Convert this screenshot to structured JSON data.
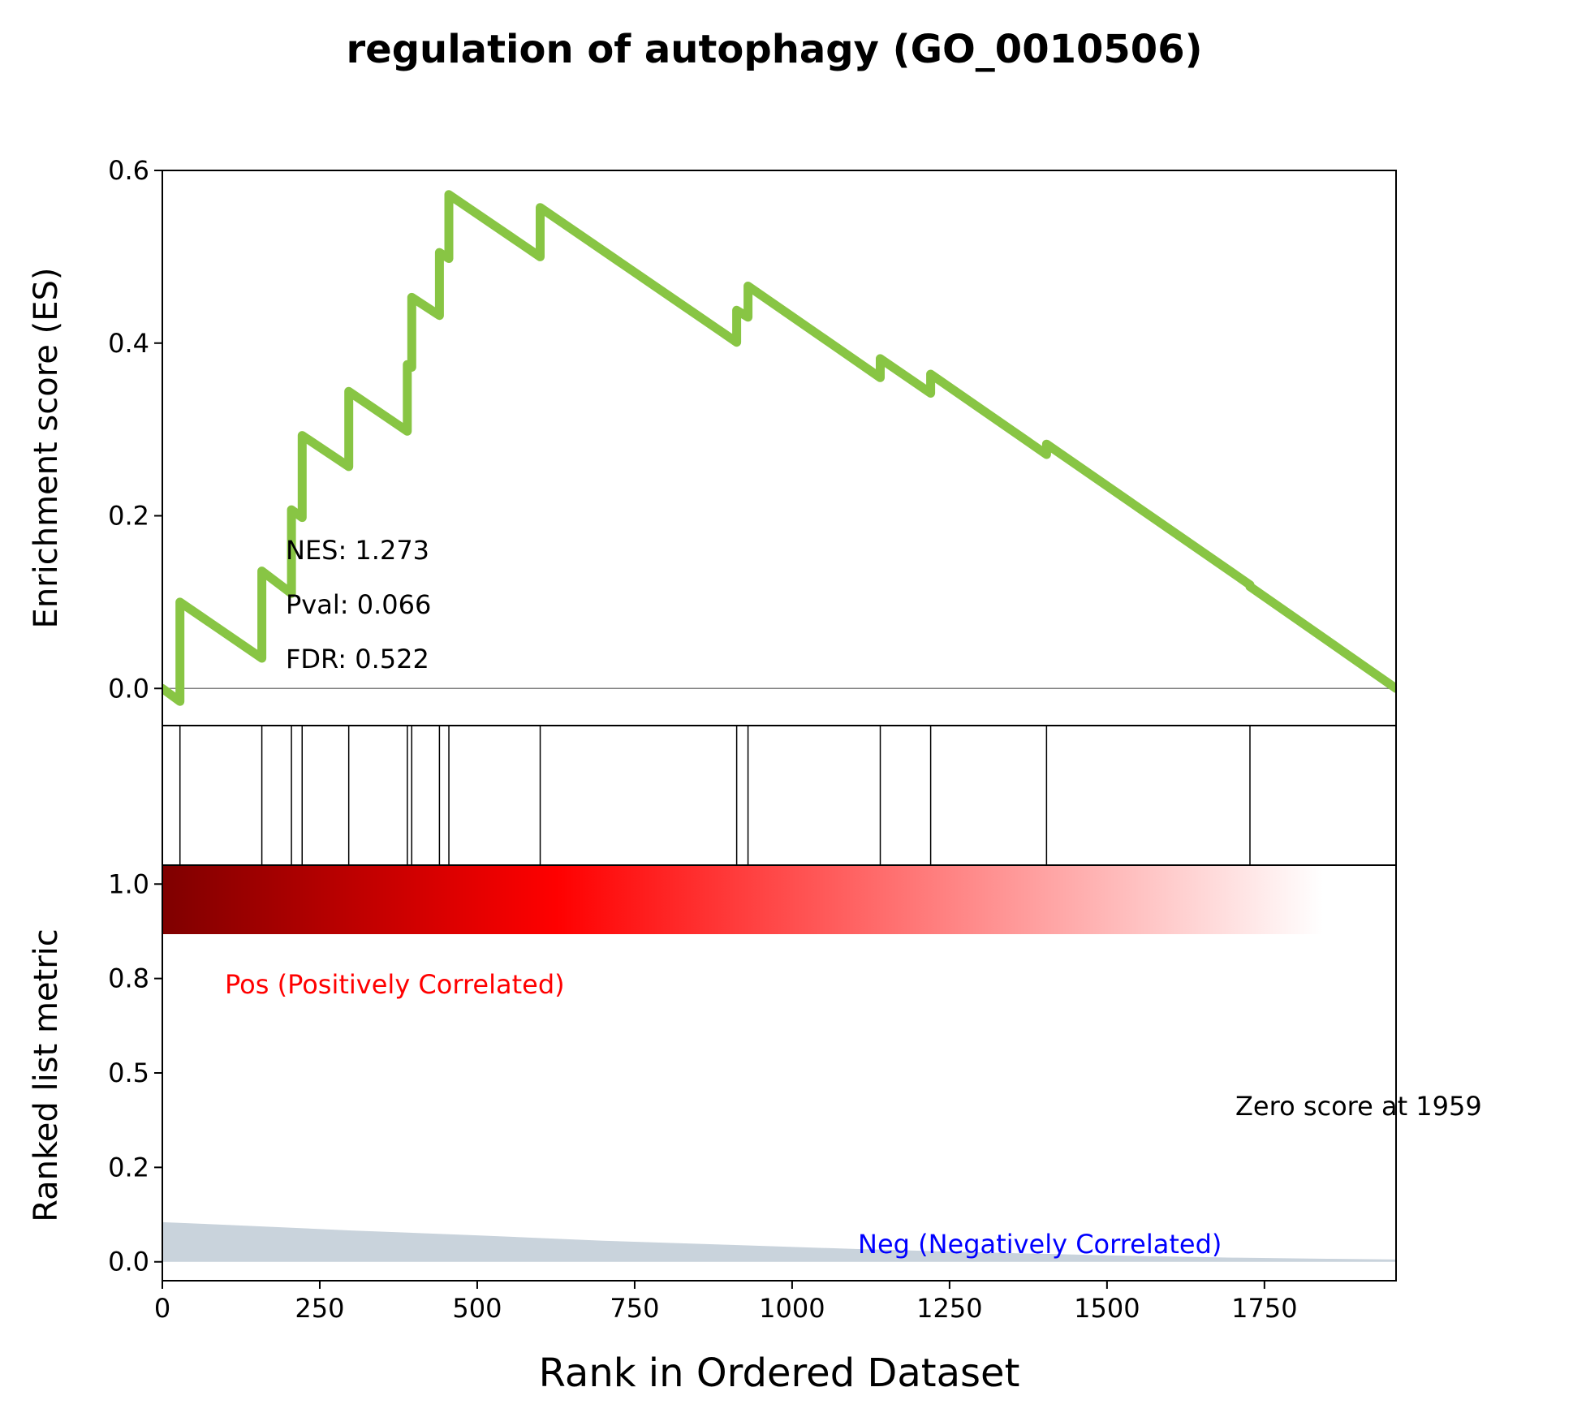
{
  "chart_data": {
    "type": "line",
    "title": "regulation of autophagy (GO_0010506)",
    "xlabel": "Rank in Ordered Dataset",
    "xlim": [
      0,
      1959
    ],
    "x_ticks": [
      0,
      250,
      500,
      750,
      1000,
      1250,
      1500,
      1750
    ],
    "x_tick_labels": [
      "0",
      "250",
      "500",
      "750",
      "1000",
      "1250",
      "1500",
      "1750"
    ],
    "es_panel": {
      "ylabel": "Enrichment score (ES)",
      "ylim": [
        -0.043,
        0.6
      ],
      "y_ticks": [
        0.0,
        0.2,
        0.4,
        0.6
      ],
      "y_tick_labels": [
        "0.0",
        "0.2",
        "0.4",
        "0.6"
      ],
      "line_color": "#88c544",
      "zero_line_color": "#808080",
      "stats": [
        "NES: 1.273",
        "Pval: 0.066",
        "FDR: 0.522"
      ],
      "series": [
        {
          "x": [
            0,
            28,
            28,
            158,
            158,
            205,
            205,
            222,
            222,
            296,
            296,
            389,
            389,
            396,
            396,
            440,
            440,
            455,
            455,
            600,
            600,
            912,
            912,
            930,
            930,
            1140,
            1140,
            1220,
            1220,
            1404,
            1404,
            1727,
            1727,
            1959
          ],
          "y": [
            0.0,
            -0.015,
            0.1,
            0.035,
            0.136,
            0.11,
            0.207,
            0.198,
            0.293,
            0.257,
            0.344,
            0.298,
            0.375,
            0.372,
            0.453,
            0.432,
            0.505,
            0.498,
            0.572,
            0.5,
            0.557,
            0.401,
            0.438,
            0.43,
            0.466,
            0.36,
            0.382,
            0.342,
            0.364,
            0.271,
            0.283,
            0.12,
            0.118,
            0.0
          ]
        }
      ]
    },
    "hits": [
      28,
      158,
      205,
      222,
      296,
      389,
      396,
      440,
      455,
      600,
      912,
      930,
      1140,
      1220,
      1404,
      1727
    ],
    "rank_panel": {
      "ylabel": "Ranked list metric",
      "ylim": [
        -0.05,
        1.05
      ],
      "y_ticks": [
        0.0,
        0.25,
        0.5,
        0.75,
        1.0
      ],
      "y_tick_labels": [
        "0.0",
        "0.2",
        "0.5",
        "0.8",
        "1.0"
      ],
      "fill_color": "#c9d3dc",
      "metric": {
        "x": [
          0,
          100,
          300,
          500,
          700,
          900,
          1100,
          1300,
          1500,
          1700,
          1850,
          1959
        ],
        "y": [
          0.105,
          0.098,
          0.083,
          0.07,
          0.056,
          0.045,
          0.034,
          0.025,
          0.017,
          0.011,
          0.008,
          0.006
        ]
      },
      "pos_label": "Pos (Positively Correlated)",
      "neg_label": "Neg (Negatively Correlated)",
      "zero_score_label": "Zero score at 1959",
      "pos_color": "#ff0000",
      "neg_color": "#0000ff",
      "gradient_colors": [
        "#7f0000",
        "#ff0000",
        "#ffffff"
      ]
    }
  }
}
